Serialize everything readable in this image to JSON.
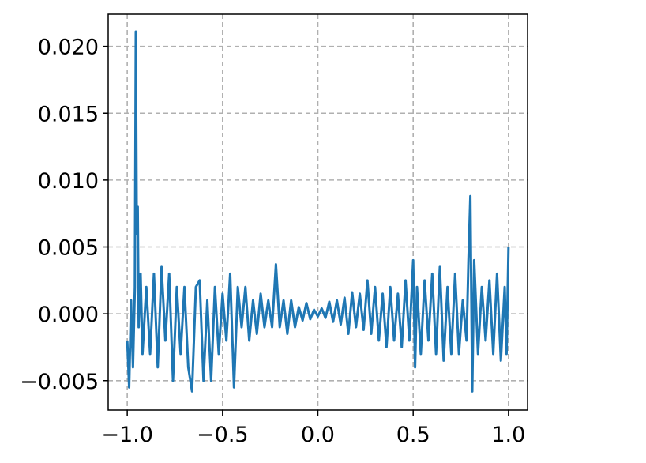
{
  "chart_data": {
    "type": "line",
    "x": [
      -1.0,
      -0.99,
      -0.98,
      -0.97,
      -0.96,
      -0.955,
      -0.95,
      -0.945,
      -0.94,
      -0.93,
      -0.92,
      -0.9,
      -0.88,
      -0.86,
      -0.84,
      -0.82,
      -0.8,
      -0.78,
      -0.76,
      -0.74,
      -0.72,
      -0.7,
      -0.68,
      -0.66,
      -0.64,
      -0.62,
      -0.6,
      -0.58,
      -0.56,
      -0.54,
      -0.52,
      -0.5,
      -0.48,
      -0.46,
      -0.44,
      -0.42,
      -0.4,
      -0.38,
      -0.36,
      -0.34,
      -0.32,
      -0.3,
      -0.28,
      -0.26,
      -0.24,
      -0.22,
      -0.2,
      -0.18,
      -0.16,
      -0.14,
      -0.12,
      -0.1,
      -0.08,
      -0.06,
      -0.04,
      -0.02,
      0.0,
      0.02,
      0.04,
      0.06,
      0.08,
      0.1,
      0.12,
      0.14,
      0.16,
      0.18,
      0.2,
      0.22,
      0.24,
      0.26,
      0.28,
      0.3,
      0.32,
      0.34,
      0.36,
      0.38,
      0.4,
      0.42,
      0.44,
      0.46,
      0.48,
      0.5,
      0.51,
      0.52,
      0.54,
      0.56,
      0.58,
      0.6,
      0.62,
      0.64,
      0.66,
      0.68,
      0.7,
      0.72,
      0.74,
      0.76,
      0.78,
      0.79,
      0.8,
      0.81,
      0.82,
      0.84,
      0.86,
      0.88,
      0.9,
      0.92,
      0.94,
      0.96,
      0.98,
      0.99,
      1.0
    ],
    "series": [
      {
        "color": "#1f77b4",
        "values": [
          -0.002,
          -0.0055,
          0.001,
          -0.004,
          0.002,
          0.0211,
          0.006,
          0.008,
          -0.001,
          0.003,
          -0.003,
          0.002,
          -0.003,
          0.003,
          -0.004,
          0.0035,
          -0.002,
          0.003,
          -0.005,
          0.002,
          -0.003,
          0.002,
          -0.004,
          -0.0058,
          0.002,
          0.0025,
          -0.005,
          0.001,
          -0.005,
          0.002,
          -0.003,
          0.0015,
          -0.002,
          0.003,
          -0.0055,
          0.002,
          -0.001,
          0.002,
          -0.002,
          0.001,
          -0.0015,
          0.0015,
          -0.001,
          0.001,
          -0.001,
          0.0037,
          -0.001,
          0.001,
          -0.0015,
          0.001,
          -0.001,
          0.0005,
          -0.0005,
          0.0008,
          -0.0004,
          0.0003,
          -0.0002,
          0.0004,
          -0.0003,
          0.0009,
          -0.0006,
          0.001,
          -0.0008,
          0.0012,
          -0.0015,
          0.0016,
          -0.001,
          0.0015,
          -0.0012,
          0.0025,
          -0.0015,
          0.002,
          -0.002,
          0.0015,
          -0.0025,
          0.002,
          -0.002,
          0.0015,
          -0.0025,
          0.0025,
          -0.002,
          0.004,
          -0.004,
          0.002,
          -0.003,
          0.0025,
          -0.002,
          0.003,
          -0.003,
          0.0035,
          -0.0035,
          0.002,
          -0.003,
          0.003,
          -0.003,
          0.001,
          -0.002,
          0.004,
          0.0088,
          -0.0058,
          0.004,
          -0.003,
          0.002,
          -0.002,
          0.0025,
          -0.003,
          0.003,
          -0.0035,
          0.002,
          -0.003,
          0.005
        ]
      }
    ],
    "xlim": [
      -1.1,
      1.1
    ],
    "ylim": [
      -0.0072,
      0.0224
    ],
    "xticks": [
      {
        "value": -1.0,
        "label": "−1.0"
      },
      {
        "value": -0.5,
        "label": "−0.5"
      },
      {
        "value": 0.0,
        "label": "0.0"
      },
      {
        "value": 0.5,
        "label": "0.5"
      },
      {
        "value": 1.0,
        "label": "1.0"
      }
    ],
    "yticks": [
      {
        "value": -0.005,
        "label": "−0.005"
      },
      {
        "value": 0.0,
        "label": "0.000"
      },
      {
        "value": 0.005,
        "label": "0.005"
      },
      {
        "value": 0.01,
        "label": "0.010"
      },
      {
        "value": 0.015,
        "label": "0.015"
      },
      {
        "value": 0.02,
        "label": "0.020"
      }
    ],
    "grid": true
  }
}
